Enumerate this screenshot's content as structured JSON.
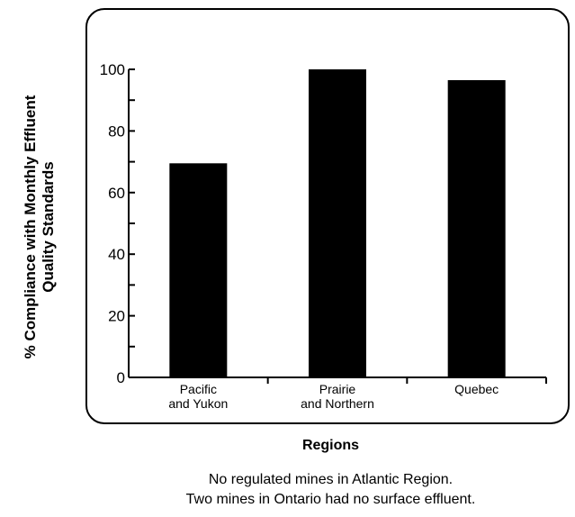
{
  "chart_data": {
    "type": "bar",
    "categories": [
      [
        "Pacific",
        "and Yukon"
      ],
      [
        "Prairie",
        "and Northern"
      ],
      [
        "Quebec"
      ]
    ],
    "values": [
      69.5,
      100,
      96.5
    ],
    "ylabel": [
      "% Compliance with Monthly Effluent",
      "Quality Standards"
    ],
    "xlabel": "Regions",
    "ylim": [
      0,
      100
    ],
    "yticks": [
      0,
      20,
      40,
      60,
      80,
      100
    ],
    "bar_color": "#000000",
    "grid": false,
    "notes": [
      "No regulated mines in Atlantic Region.",
      "Two mines in Ontario had no surface effluent."
    ]
  }
}
